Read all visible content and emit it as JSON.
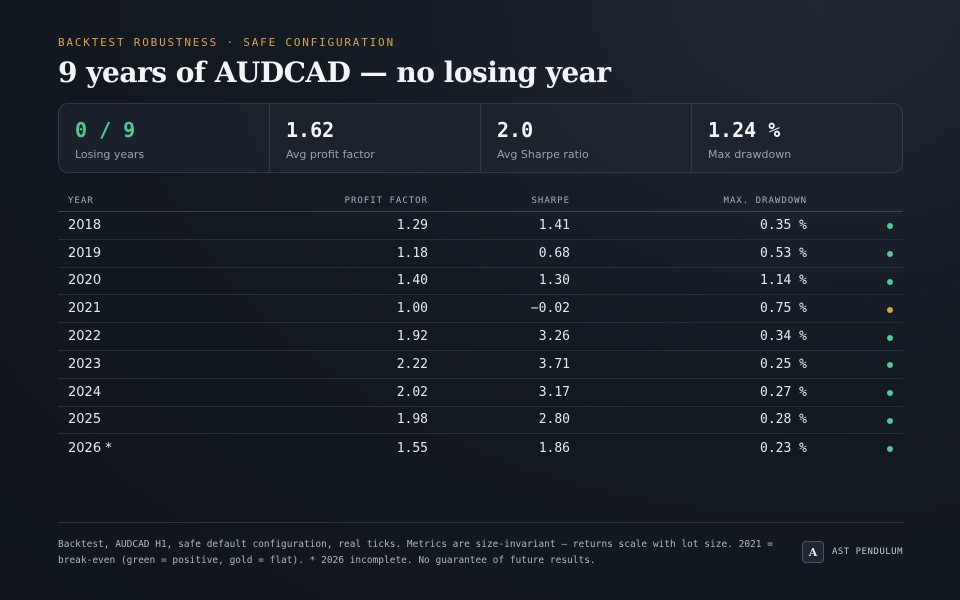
{
  "header": {
    "eyebrow": "BACKTEST ROBUSTNESS · SAFE CONFIGURATION",
    "title": "9 years of AUDCAD — no losing year"
  },
  "stats": [
    {
      "value": "0 / 9",
      "label": "Losing years",
      "highlight": true
    },
    {
      "value": "1.62",
      "label": "Avg profit factor",
      "highlight": false
    },
    {
      "value": "2.0",
      "label": "Avg Sharpe ratio",
      "highlight": false
    },
    {
      "value": "1.24 %",
      "label": "Max drawdown",
      "highlight": false
    }
  ],
  "table": {
    "columns": {
      "year": "YEAR",
      "profit_factor": "PROFIT FACTOR",
      "sharpe": "SHARPE",
      "max_drawdown": "MAX. DRAWDOWN"
    },
    "rows": [
      {
        "year": "2018",
        "profit_factor": "1.29",
        "sharpe": "1.41",
        "max_drawdown": "0.35 %",
        "status": "positive"
      },
      {
        "year": "2019",
        "profit_factor": "1.18",
        "sharpe": "0.68",
        "max_drawdown": "0.53 %",
        "status": "positive"
      },
      {
        "year": "2020",
        "profit_factor": "1.40",
        "sharpe": "1.30",
        "max_drawdown": "1.14 %",
        "status": "positive"
      },
      {
        "year": "2021",
        "profit_factor": "1.00",
        "sharpe": "−0.02",
        "max_drawdown": "0.75 %",
        "status": "flat"
      },
      {
        "year": "2022",
        "profit_factor": "1.92",
        "sharpe": "3.26",
        "max_drawdown": "0.34 %",
        "status": "positive"
      },
      {
        "year": "2023",
        "profit_factor": "2.22",
        "sharpe": "3.71",
        "max_drawdown": "0.25 %",
        "status": "positive"
      },
      {
        "year": "2024",
        "profit_factor": "2.02",
        "sharpe": "3.17",
        "max_drawdown": "0.27 %",
        "status": "positive"
      },
      {
        "year": "2025",
        "profit_factor": "1.98",
        "sharpe": "2.80",
        "max_drawdown": "0.28 %",
        "status": "positive"
      },
      {
        "year": "2026 *",
        "profit_factor": "1.55",
        "sharpe": "1.86",
        "max_drawdown": "0.23 %",
        "status": "positive"
      }
    ]
  },
  "status_colors": {
    "positive": "#4ec994",
    "flat": "#d9a24e"
  },
  "footer": {
    "disclaimer": "Backtest, AUDCAD H1, safe default configuration, real ticks. Metrics are size-invariant – returns scale with lot size. 2021 = break-even (green = positive, gold = flat). * 2026 incomplete. No guarantee of future results.",
    "brand_letter": "A",
    "brand_name": "AST PENDULUM"
  }
}
